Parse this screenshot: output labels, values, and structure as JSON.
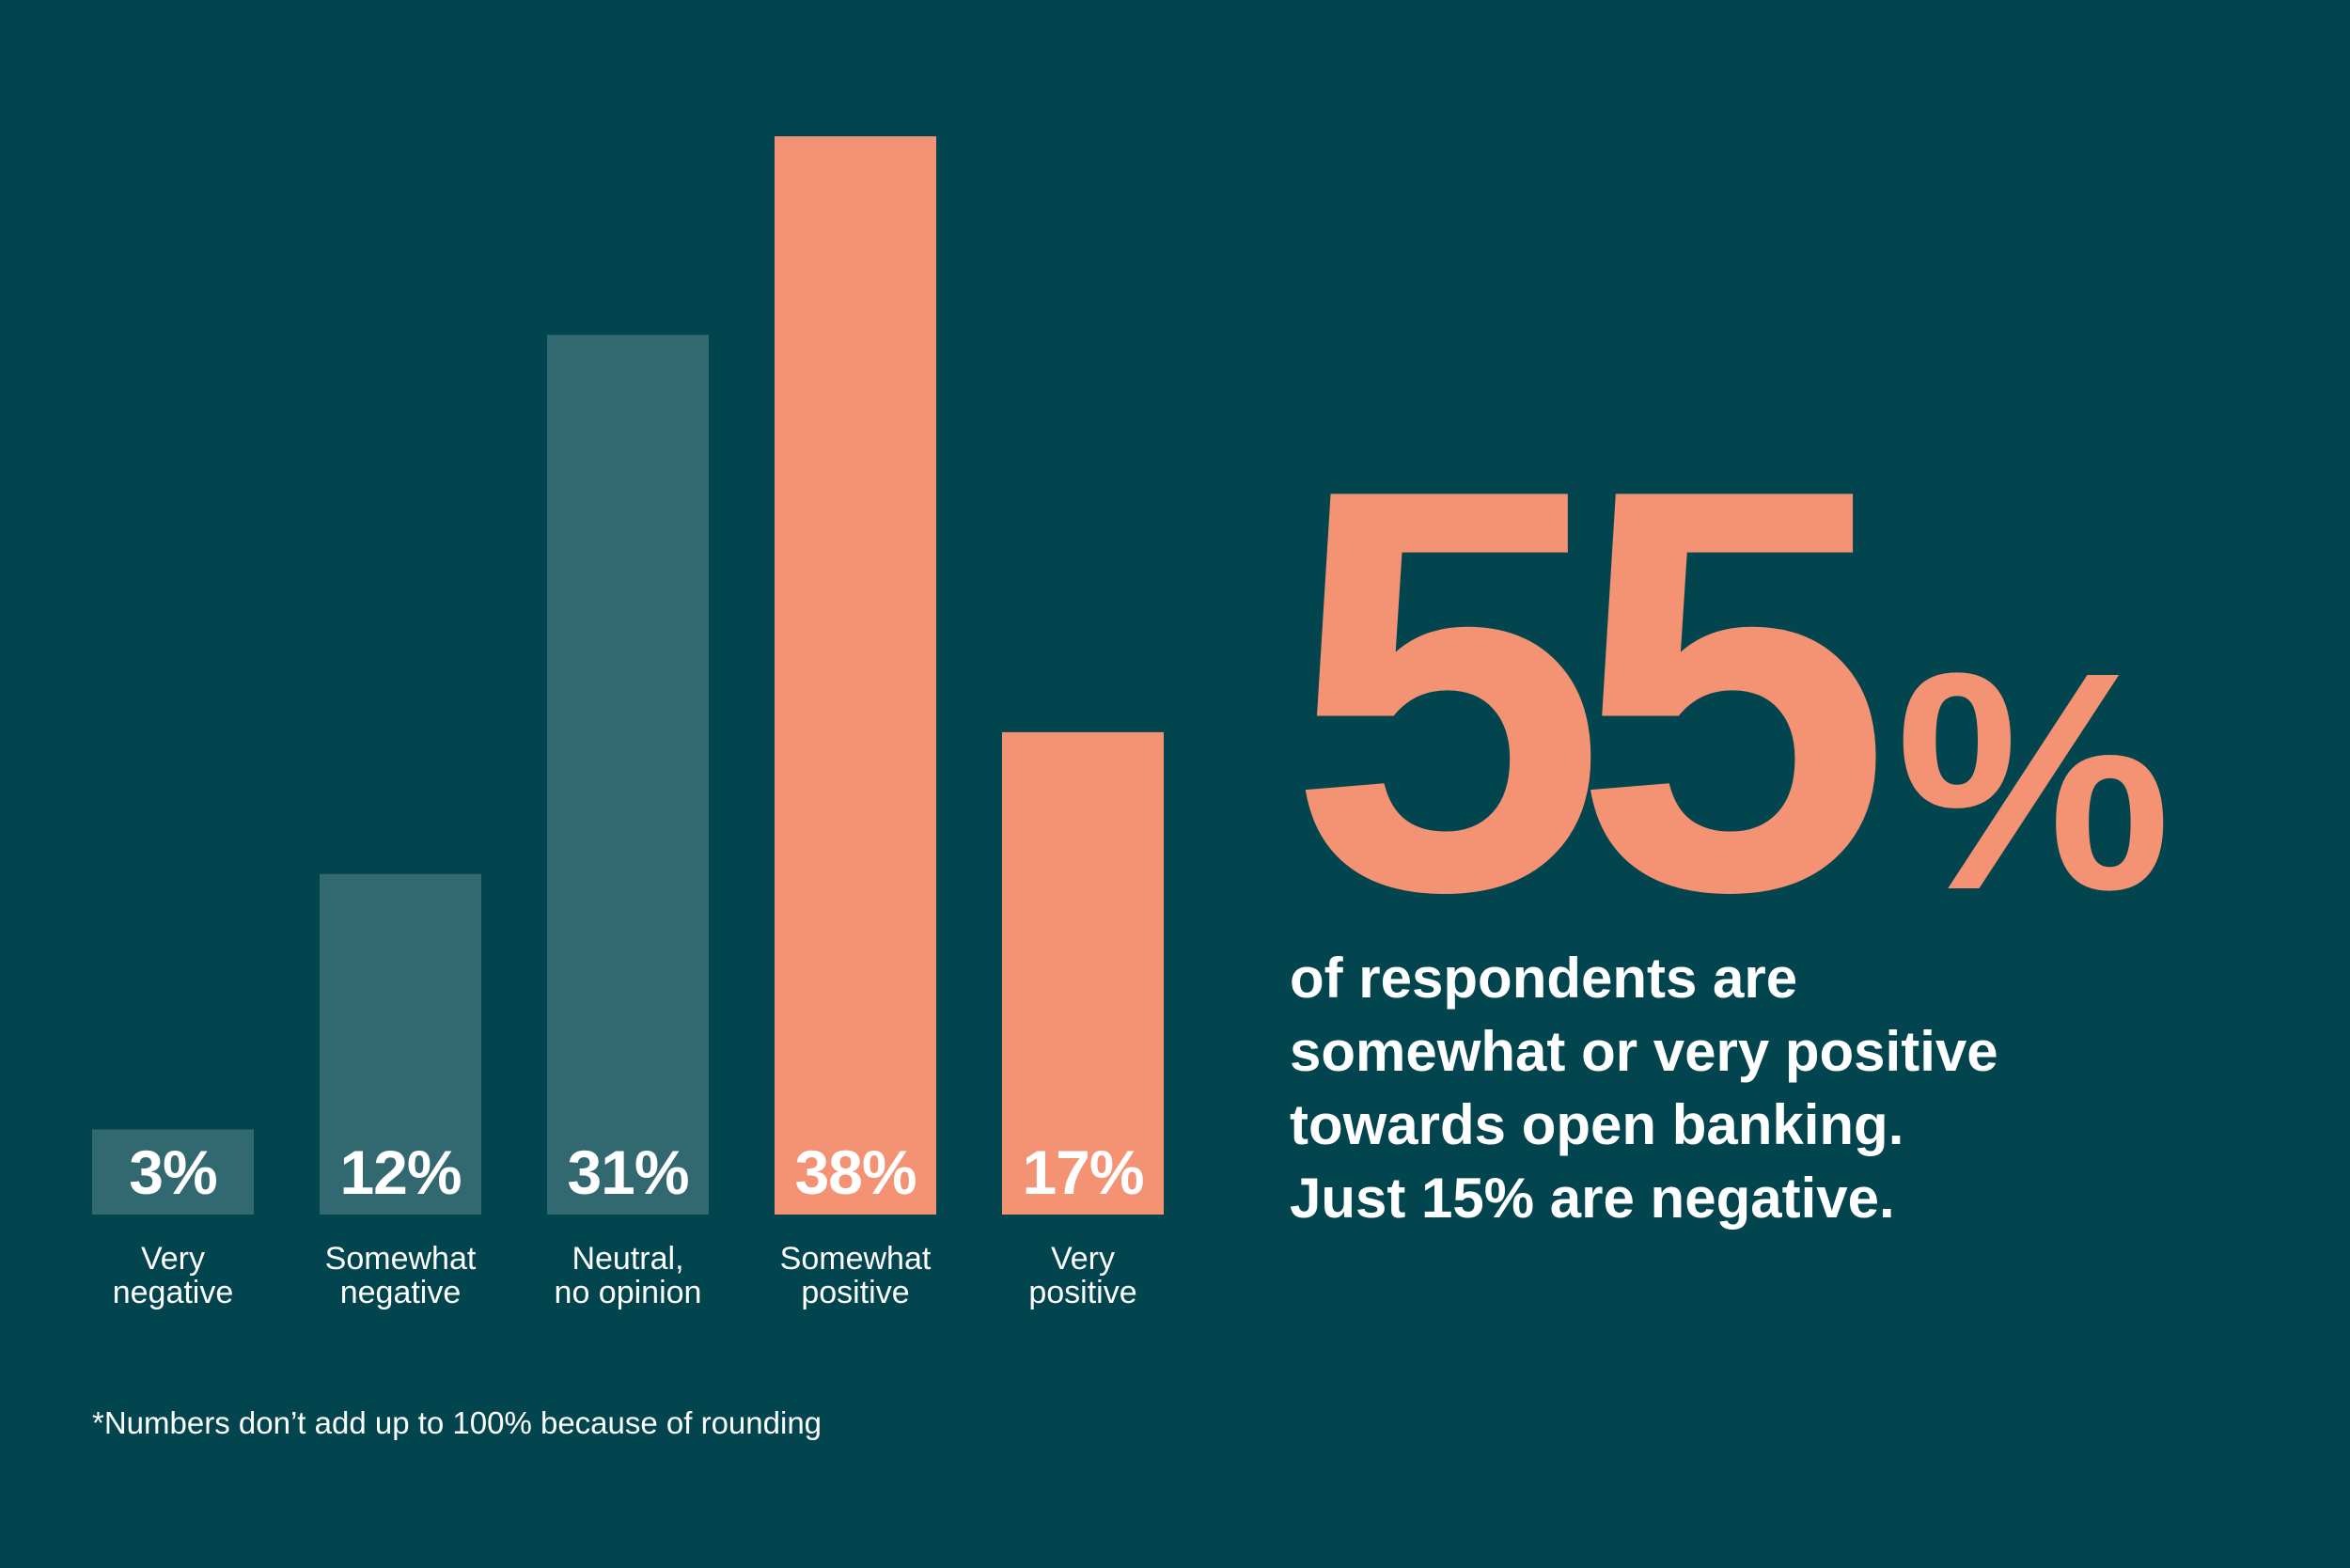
{
  "chart_data": {
    "type": "bar",
    "categories": [
      [
        "Very",
        "negative"
      ],
      [
        "Somewhat",
        "negative"
      ],
      [
        "Neutral,",
        "no opinion"
      ],
      [
        "Somewhat",
        "positive"
      ],
      [
        "Very",
        "positive"
      ]
    ],
    "values": [
      3,
      12,
      31,
      38,
      17
    ],
    "value_labels": [
      "3%",
      "12%",
      "31%",
      "38%",
      "17%"
    ],
    "bar_colors": [
      "#32686f",
      "#32686f",
      "#32686f",
      "#f49274",
      "#f49274"
    ],
    "ylim": [
      0,
      38
    ],
    "grid": false,
    "legend": "none"
  },
  "headline": {
    "number": "55",
    "percent_sign": "%",
    "caption_lines": [
      "of respondents are",
      "somewhat or very positive",
      "towards open banking.",
      "Just 15% are negative."
    ]
  },
  "footnote": "*Numbers don’t add up to 100% because of rounding",
  "colors": {
    "background": "#03454f",
    "negative_neutral_bar": "#32686f",
    "positive_bar": "#f49274",
    "text": "#ffffff",
    "accent": "#f49274"
  }
}
